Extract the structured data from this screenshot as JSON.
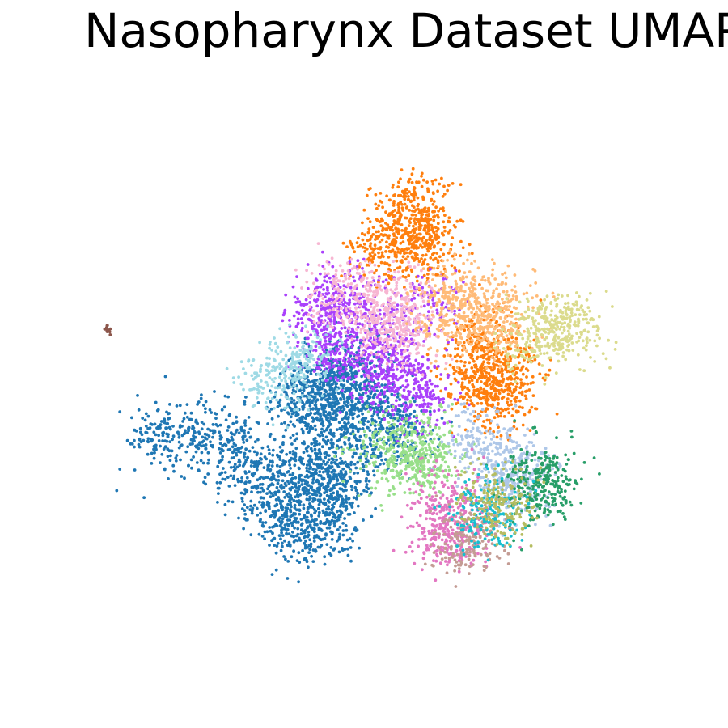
{
  "chart_data": {
    "type": "scatter",
    "title": "Nasopharynx Dataset UMAP",
    "xlabel": "",
    "ylabel": "",
    "axes_visible": false,
    "grid": false,
    "legend": "none",
    "clusters": [
      {
        "color": "#1f77b4",
        "points": [
          [
            -4.2,
            -0.2
          ],
          [
            -3.6,
            -0.1
          ],
          [
            -3.0,
            -0.2
          ],
          [
            -2.5,
            -0.3
          ],
          [
            -2.3,
            -0.9
          ],
          [
            -1.9,
            -1.5
          ],
          [
            -1.5,
            -1.9
          ],
          [
            -1.2,
            -2.2
          ],
          [
            -0.9,
            -2.0
          ],
          [
            -0.6,
            -1.5
          ],
          [
            -0.4,
            -1.0
          ],
          [
            -0.3,
            -0.5
          ],
          [
            -1.0,
            -0.6
          ],
          [
            -1.5,
            -0.8
          ],
          [
            -1.3,
            -1.3
          ],
          [
            -0.8,
            -1.1
          ],
          [
            -1.2,
            0.3
          ],
          [
            -0.9,
            0.6
          ],
          [
            -0.6,
            0.9
          ],
          [
            -0.4,
            0.7
          ],
          [
            -0.1,
            0.4
          ],
          [
            0.3,
            0.4
          ],
          [
            0.5,
            0.1
          ],
          [
            -0.6,
            0.2
          ],
          [
            -0.2,
            1.4
          ],
          [
            -0.5,
            1.1
          ],
          [
            -1.1,
            0.9
          ],
          [
            0.8,
            -0.2
          ]
        ]
      },
      {
        "color": "#ff7f0e",
        "points": [
          [
            0.8,
            4.3
          ],
          [
            1.1,
            4.6
          ],
          [
            1.0,
            4.0
          ],
          [
            0.6,
            3.8
          ],
          [
            1.3,
            3.7
          ],
          [
            0.4,
            3.6
          ],
          [
            0.9,
            3.4
          ],
          [
            2.3,
            1.5
          ],
          [
            2.6,
            1.0
          ],
          [
            2.9,
            1.2
          ],
          [
            2.5,
            0.6
          ],
          [
            2.2,
            0.8
          ],
          [
            2.8,
            0.7
          ],
          [
            2.4,
            1.9
          ]
        ]
      },
      {
        "color": "#aa40fc",
        "points": [
          [
            -0.7,
            2.4
          ],
          [
            -0.9,
            2.2
          ],
          [
            -0.5,
            2.6
          ],
          [
            0.1,
            2.4
          ],
          [
            1.4,
            2.5
          ],
          [
            -0.7,
            1.7
          ],
          [
            -0.3,
            1.5
          ],
          [
            0.2,
            1.3
          ],
          [
            0.5,
            1.6
          ],
          [
            0.6,
            1.0
          ],
          [
            0.9,
            0.9
          ],
          [
            1.1,
            0.5
          ]
        ]
      },
      {
        "color": "#f7b6d2",
        "points": [
          [
            -0.5,
            2.8
          ],
          [
            0.0,
            2.6
          ],
          [
            0.5,
            2.5
          ],
          [
            0.9,
            2.3
          ],
          [
            0.3,
            2.0
          ],
          [
            0.8,
            1.9
          ]
        ]
      },
      {
        "color": "#ffbb78",
        "points": [
          [
            1.9,
            2.7
          ],
          [
            2.4,
            2.5
          ],
          [
            2.8,
            2.4
          ],
          [
            2.0,
            2.1
          ],
          [
            2.6,
            2.0
          ],
          [
            1.6,
            2.3
          ]
        ]
      },
      {
        "color": "#98df8a",
        "points": [
          [
            0.8,
            -0.5
          ],
          [
            1.1,
            -0.3
          ],
          [
            1.3,
            -0.6
          ],
          [
            0.9,
            -0.8
          ],
          [
            0.3,
            -0.4
          ]
        ]
      },
      {
        "color": "#aec7e8",
        "points": [
          [
            2.2,
            -0.3
          ],
          [
            2.6,
            -0.5
          ],
          [
            3.0,
            -0.7
          ],
          [
            3.2,
            -1.0
          ],
          [
            2.8,
            -1.2
          ]
        ]
      },
      {
        "color": "#279e68",
        "points": [
          [
            3.4,
            -0.9
          ],
          [
            3.7,
            -1.1
          ],
          [
            3.5,
            -1.3
          ]
        ]
      },
      {
        "color": "#e377c2",
        "points": [
          [
            1.6,
            -1.3
          ],
          [
            1.7,
            -1.8
          ],
          [
            1.5,
            -2.2
          ],
          [
            1.9,
            -2.1
          ]
        ]
      },
      {
        "color": "#c49c94",
        "points": [
          [
            2.0,
            -2.2
          ],
          [
            2.2,
            -2.1
          ]
        ]
      },
      {
        "color": "#17becf",
        "points": [
          [
            2.4,
            -1.7
          ],
          [
            2.5,
            -1.6
          ]
        ]
      },
      {
        "color": "#b5bd61",
        "points": [
          [
            2.6,
            -1.4
          ],
          [
            2.7,
            -1.5
          ]
        ]
      },
      {
        "color": "#dbdb8d",
        "points": [
          [
            3.6,
            1.9
          ],
          [
            3.9,
            2.1
          ],
          [
            4.2,
            2.0
          ],
          [
            3.4,
            1.7
          ]
        ]
      },
      {
        "color": "#9edae5",
        "points": [
          [
            -1.5,
            1.2
          ],
          [
            -1.2,
            1.3
          ],
          [
            -1.8,
            1.0
          ]
        ]
      },
      {
        "color": "#8c564b",
        "points": [
          [
            -5.1,
            2.0
          ]
        ]
      }
    ]
  }
}
